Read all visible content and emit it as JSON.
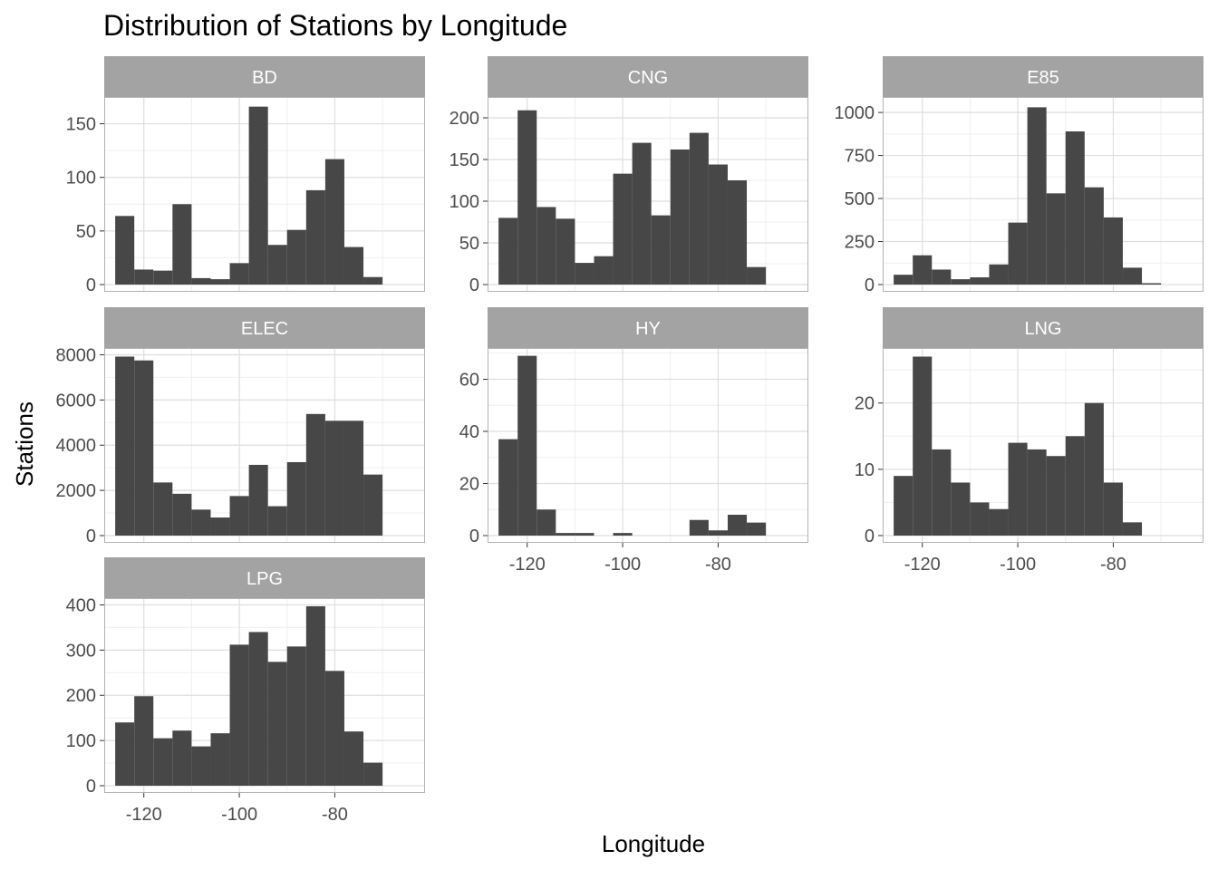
{
  "chart_data": {
    "type": "histogram-facets",
    "title": "Distribution of Stations by Longitude",
    "xlabel": "Longitude",
    "ylabel": "Stations",
    "colors": {
      "bar": "#474747",
      "strip": "#a3a3a3",
      "strip_text": "#ffffff",
      "grid": "#dedede",
      "border": "#b3b3b3"
    },
    "grid": true,
    "x_ticks": [
      -120,
      -100,
      -80
    ],
    "x_tick_labels": [
      "-120",
      "-100",
      "-80"
    ],
    "xlim": [
      -128.3,
      -61.1
    ],
    "bin_width": 4,
    "bin_starts": [
      -126,
      -122,
      -118,
      -114,
      -110,
      -106,
      -102,
      -98,
      -94,
      -90,
      -86,
      -82,
      -78,
      -74,
      -70,
      -66
    ],
    "panels": [
      {
        "name": "BD",
        "ylim": [
          0,
          175
        ],
        "y_ticks": [
          0,
          50,
          100,
          150
        ],
        "y_tick_labels": [
          "0",
          "50",
          "100",
          "150"
        ],
        "values": [
          64,
          14,
          13,
          75,
          6,
          5,
          20,
          166,
          37,
          51,
          88,
          117,
          35,
          7,
          0,
          0
        ]
      },
      {
        "name": "CNG",
        "ylim": [
          0,
          225
        ],
        "y_ticks": [
          0,
          50,
          100,
          150,
          200
        ],
        "y_tick_labels": [
          "0",
          "50",
          "100",
          "150",
          "200"
        ],
        "values": [
          80,
          209,
          93,
          79,
          26,
          34,
          133,
          170,
          83,
          162,
          182,
          144,
          125,
          21,
          0,
          0
        ]
      },
      {
        "name": "E85",
        "ylim": [
          0,
          1090
        ],
        "y_ticks": [
          0,
          250,
          500,
          750,
          1000
        ],
        "y_tick_labels": [
          "0",
          "250",
          "500",
          "750",
          "1000"
        ],
        "values": [
          57,
          170,
          87,
          31,
          42,
          117,
          360,
          1030,
          530,
          890,
          565,
          390,
          98,
          8,
          0,
          0
        ]
      },
      {
        "name": "ELEC",
        "ylim": [
          0,
          8300
        ],
        "y_ticks": [
          0,
          2000,
          4000,
          6000,
          8000
        ],
        "y_tick_labels": [
          "0",
          "2000",
          "4000",
          "6000",
          "8000"
        ],
        "values": [
          7920,
          7750,
          2350,
          1850,
          1150,
          800,
          1750,
          3130,
          1300,
          3250,
          5380,
          5080,
          5080,
          2700,
          0,
          0
        ]
      },
      {
        "name": "HY",
        "ylim": [
          0,
          72
        ],
        "y_ticks": [
          0,
          20,
          40,
          60
        ],
        "y_tick_labels": [
          "0",
          "20",
          "40",
          "60"
        ],
        "values": [
          37,
          69,
          10,
          1,
          1,
          0,
          1,
          0,
          0,
          0,
          6,
          2,
          8,
          5,
          0,
          0
        ]
      },
      {
        "name": "LNG",
        "ylim": [
          0,
          28.3
        ],
        "y_ticks": [
          0,
          10,
          20
        ],
        "y_tick_labels": [
          "0",
          "10",
          "20"
        ],
        "values": [
          9,
          27,
          13,
          8,
          5,
          4,
          14,
          13,
          12,
          15,
          20,
          8,
          2,
          0,
          0,
          0
        ]
      },
      {
        "name": "LPG",
        "ylim": [
          0,
          415
        ],
        "y_ticks": [
          0,
          100,
          200,
          300,
          400
        ],
        "y_tick_labels": [
          "0",
          "100",
          "200",
          "300",
          "400"
        ],
        "values": [
          140,
          198,
          105,
          122,
          87,
          116,
          312,
          340,
          274,
          308,
          397,
          254,
          120,
          51,
          0,
          0
        ]
      }
    ]
  }
}
